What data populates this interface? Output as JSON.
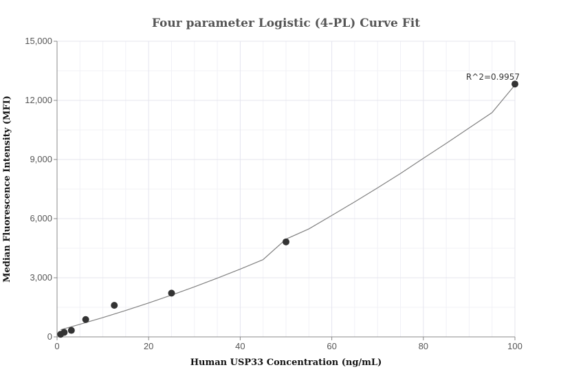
{
  "chart_data": {
    "type": "scatter",
    "title": "Four parameter Logistic (4-PL) Curve Fit",
    "xlabel": "Human USP33 Concentration (ng/mL)",
    "ylabel": "Median Fluorescence Intensity (MFI)",
    "xlim": [
      0,
      100
    ],
    "ylim": [
      0,
      15000
    ],
    "x_ticks": [
      "0",
      "20",
      "40",
      "60",
      "80",
      "100"
    ],
    "y_ticks": [
      "0",
      "3,000",
      "6,000",
      "9,000",
      "12,000",
      "15,000"
    ],
    "grid": true,
    "series": [
      {
        "type": "scatter",
        "x": [
          0.78,
          1.56,
          3.125,
          6.25,
          12.5,
          25,
          50,
          100
        ],
        "y": [
          130,
          230,
          330,
          880,
          1600,
          2220,
          4820,
          12830
        ],
        "color": "#333333"
      },
      {
        "type": "line",
        "fit": "4PL",
        "x": [
          0.78,
          5,
          10,
          15,
          20,
          25,
          30,
          35,
          40,
          45,
          50,
          55,
          60,
          65,
          70,
          75,
          80,
          85,
          90,
          95,
          100
        ],
        "y": [
          360,
          640,
          980,
          1340,
          1720,
          2120,
          2540,
          2980,
          3440,
          3920,
          4960,
          5480,
          6160,
          6850,
          7560,
          8290,
          9060,
          9820,
          10600,
          11380,
          12780
        ],
        "color": "#808080"
      }
    ],
    "annotations": [
      {
        "text": "R^2=0.9957",
        "x": 100,
        "y": 12830
      }
    ]
  }
}
